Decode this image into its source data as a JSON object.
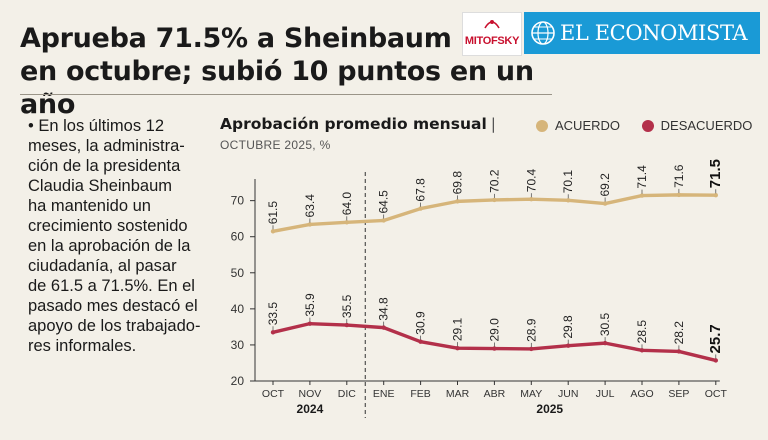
{
  "header": {
    "title_line1": "Aprueba 71.5% a Sheinbaum",
    "title_line2": "en octubre; subió 10 puntos en un año",
    "logo_mitofsky": "MITOFSKY",
    "logo_economista": "EL ECONOMISTA"
  },
  "sidebar": {
    "lines": [
      "• En los últimos 12",
      "meses, la administra-",
      "ción de la presidenta",
      "Claudia Sheinbaum",
      "ha mantenido un",
      "crecimiento sostenido",
      "en la aprobación de la",
      "ciudadanía, al pasar",
      "de 61.5 a 71.5%. En el",
      "pasado mes destacó el",
      "apoyo de los trabajado-",
      "res informales."
    ]
  },
  "colors": {
    "background": "#f3f0e8",
    "acuerdo": "#d6b57a",
    "desacuerdo": "#b3304a",
    "economista_blue": "#1a9ad6",
    "mitofsky_red": "#c8102e"
  },
  "chart_data": {
    "type": "line",
    "title": "Aprobación promedio mensual",
    "subtitle": "OCTUBRE 2025, %",
    "categories": [
      "OCT",
      "NOV",
      "DIC",
      "ENE",
      "FEB",
      "MAR",
      "ABR",
      "MAY",
      "JUN",
      "JUL",
      "AGO",
      "SEP",
      "OCT"
    ],
    "year_groups": [
      {
        "label": "2024",
        "start": 0,
        "end": 2
      },
      {
        "label": "2025",
        "start": 3,
        "end": 12
      }
    ],
    "series": [
      {
        "name": "ACUERDO",
        "color": "#d6b57a",
        "values": [
          61.5,
          63.4,
          64.0,
          64.5,
          67.8,
          69.8,
          70.2,
          70.4,
          70.1,
          69.2,
          71.4,
          71.6,
          71.5
        ]
      },
      {
        "name": "DESACUERDO",
        "color": "#b3304a",
        "values": [
          33.5,
          35.9,
          35.5,
          34.8,
          30.9,
          29.1,
          29.0,
          28.9,
          29.8,
          30.5,
          28.5,
          28.2,
          25.7
        ]
      }
    ],
    "yticks": [
      20,
      30,
      40,
      50,
      60,
      70
    ],
    "ylim": [
      20,
      76
    ],
    "divider_after_index": 2,
    "legend_position": "top-right",
    "grid": false
  }
}
